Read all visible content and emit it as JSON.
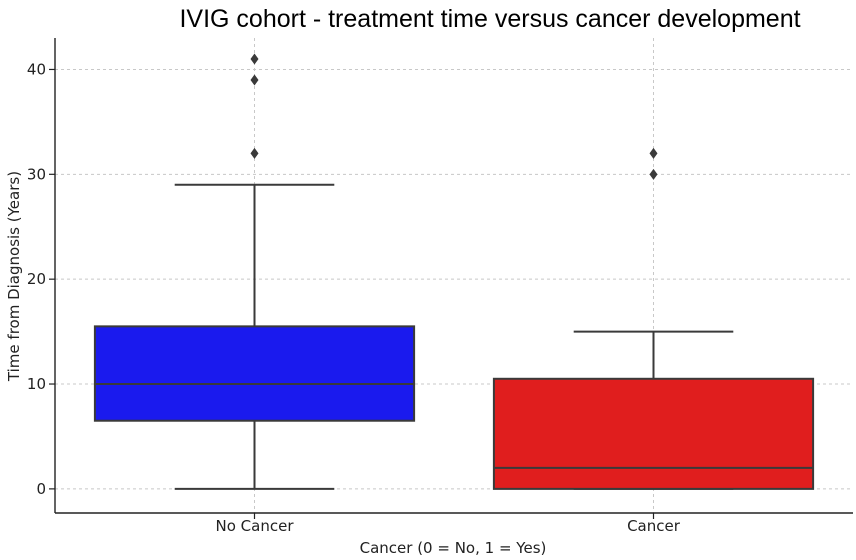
{
  "chart_data": {
    "type": "box",
    "title": "IVIG cohort - treatment time versus cancer development",
    "xlabel": "Cancer (0 = No, 1 = Yes)",
    "ylabel": "Time from Diagnosis (Years)",
    "ylim": [
      -2.3,
      43
    ],
    "yticks": [
      0,
      10,
      20,
      30,
      40
    ],
    "grid": true,
    "categories": [
      "No Cancer",
      "Cancer"
    ],
    "boxes": [
      {
        "name": "No Cancer",
        "color": "#1a1aee",
        "whisker_low": 0,
        "q1": 6.5,
        "median": 10,
        "q3": 15.5,
        "whisker_high": 29,
        "outliers": [
          32,
          39,
          41
        ]
      },
      {
        "name": "Cancer",
        "color": "#e01e1e",
        "whisker_low": 0,
        "q1": 0,
        "median": 2,
        "q3": 10.5,
        "whisker_high": 15,
        "outliers": [
          30,
          32
        ]
      }
    ]
  }
}
